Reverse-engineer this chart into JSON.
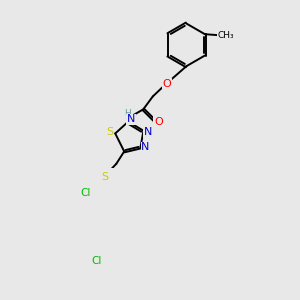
{
  "background_color": "#e8e8e8",
  "atom_colors": {
    "C": "#000000",
    "N": "#0000cc",
    "O": "#ff0000",
    "S": "#cccc00",
    "Cl": "#00bb00",
    "H": "#6699aa"
  },
  "bond_lw": 1.4,
  "figsize": [
    3.0,
    3.0
  ],
  "dpi": 100
}
